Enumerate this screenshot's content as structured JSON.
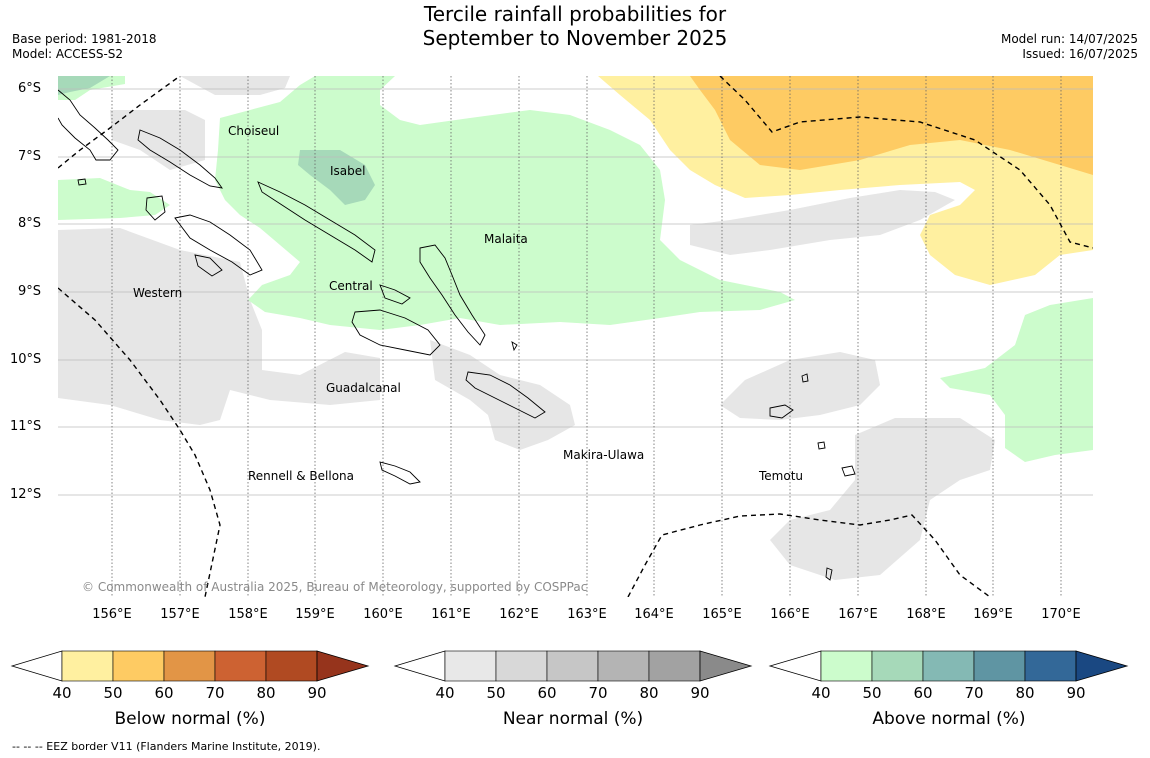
{
  "title": {
    "line1": "Tercile rainfall probabilities for",
    "line2": "September to November 2025"
  },
  "meta_left": {
    "base_period": "Base period: 1981-2018",
    "model": "Model: ACCESS-S2"
  },
  "meta_right": {
    "model_run": "Model run: 14/07/2025",
    "issued": "Issued: 16/07/2025"
  },
  "map": {
    "lat_labels": [
      "6°S",
      "7°S",
      "8°S",
      "9°S",
      "10°S",
      "11°S",
      "12°S"
    ],
    "lon_labels": [
      "156°E",
      "157°E",
      "158°E",
      "159°E",
      "160°E",
      "161°E",
      "162°E",
      "163°E",
      "164°E",
      "165°E",
      "166°E",
      "167°E",
      "168°E",
      "169°E",
      "170°E"
    ],
    "regions": [
      "Choiseul",
      "Isabel",
      "Malaita",
      "Western",
      "Central",
      "Guadalcanal",
      "Makira-Ulawa",
      "Rennell & Bellona",
      "Temotu"
    ],
    "copyright": "© Commonwealth of Australia 2025, Bureau of Meteorology, supported by COSPPac"
  },
  "legends": [
    {
      "title": "Below normal (%)",
      "ticks": [
        "40",
        "50",
        "60",
        "70",
        "80",
        "90"
      ],
      "colors": [
        "#fff0a0",
        "#fecb63",
        "#e29546",
        "#cd6232",
        "#b04a22",
        "#96341c"
      ]
    },
    {
      "title": "Near normal (%)",
      "ticks": [
        "40",
        "50",
        "60",
        "70",
        "80",
        "90"
      ],
      "colors": [
        "#e8e8e8",
        "#d8d8d8",
        "#c6c6c6",
        "#b4b4b4",
        "#a2a2a2",
        "#8a8a8a"
      ]
    },
    {
      "title": "Above normal (%)",
      "ticks": [
        "40",
        "50",
        "60",
        "70",
        "80",
        "90"
      ],
      "colors": [
        "#ccfccc",
        "#a6d9b9",
        "#84b9b4",
        "#5f95a3",
        "#336898",
        "#1a4882"
      ]
    }
  ],
  "footnote": "--  --  -- EEZ border V11 (Flanders Marine Institute, 2019)."
}
